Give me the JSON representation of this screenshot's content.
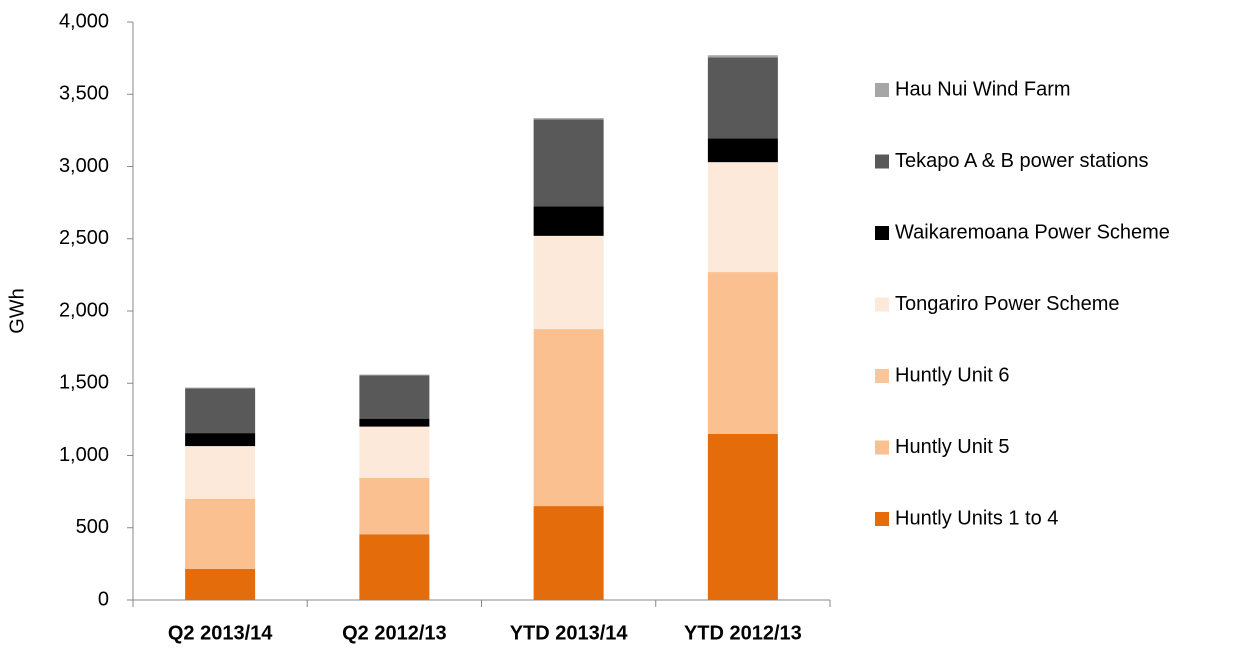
{
  "chart_data": {
    "type": "stacked_bar",
    "y_label": "GWh",
    "categories": [
      "Q2 2013/14",
      "Q2 2012/13",
      "YTD 2013/14",
      "YTD 2012/13"
    ],
    "series": [
      {
        "name": "Huntly Units 1 to 4",
        "color": "#e46c0a",
        "values": [
          215,
          455,
          650,
          1150
        ]
      },
      {
        "name": "Huntly Unit 5",
        "color": "#fac090",
        "values": [
          485,
          390,
          1225,
          1110
        ]
      },
      {
        "name": "Huntly Unit 6",
        "color": "#fbc59a",
        "values": [
          0,
          0,
          0,
          10
        ]
      },
      {
        "name": "Tongariro Power Scheme",
        "color": "#fde9d9",
        "values": [
          365,
          355,
          645,
          760
        ]
      },
      {
        "name": "Waikaremoana Power Scheme",
        "color": "#000000",
        "values": [
          90,
          55,
          205,
          165
        ]
      },
      {
        "name": "Tekapo A & B power stations",
        "color": "#595959",
        "values": [
          310,
          300,
          600,
          560
        ]
      },
      {
        "name": "Hau Nui Wind Farm",
        "color": "#a6a6a6",
        "values": [
          5,
          5,
          10,
          15
        ]
      }
    ],
    "ylim": [
      0,
      4000
    ],
    "yticks": [
      0,
      500,
      {
        "value": 1000,
        "label": "1,000"
      },
      {
        "value": 1500,
        "label": "1,500"
      },
      {
        "value": 2000,
        "label": "2,000"
      },
      {
        "value": 2500,
        "label": "2,500"
      },
      {
        "value": 3000,
        "label": "3,000"
      },
      {
        "value": 3500,
        "label": "3,500"
      },
      {
        "value": 4000,
        "label": "4,000"
      }
    ],
    "legend": "right"
  }
}
